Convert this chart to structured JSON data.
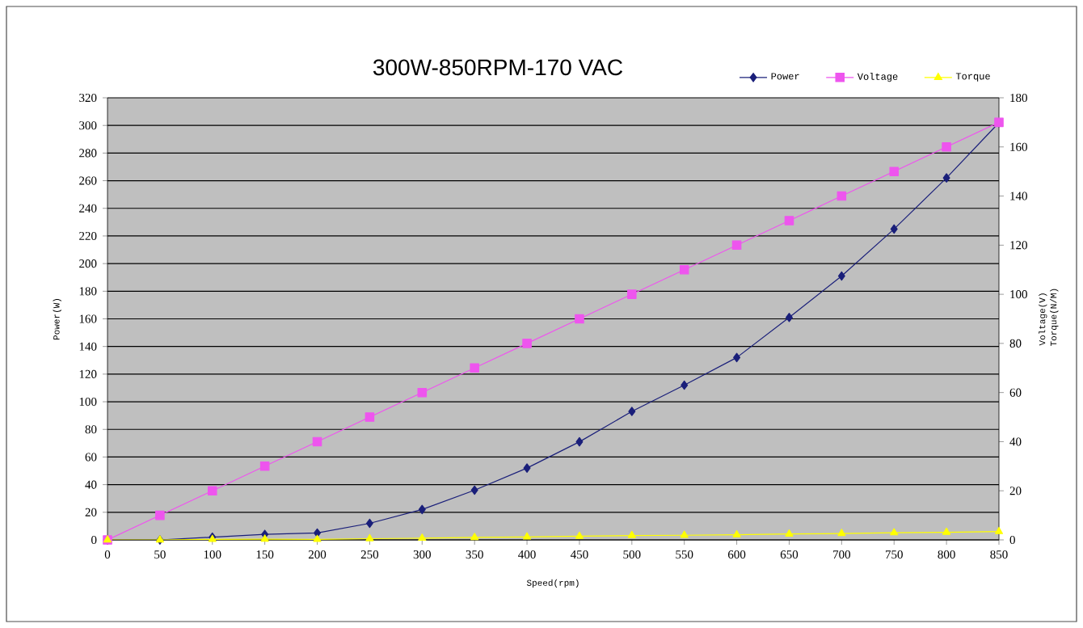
{
  "chart_data": {
    "type": "line",
    "title": "300W-850RPM-170 VAC",
    "xlabel": "Speed(rpm)",
    "ylabel": "Power(W)",
    "y2label": "Voltage(V) Torque(N/M)",
    "x": [
      0,
      50,
      100,
      150,
      200,
      250,
      300,
      350,
      400,
      450,
      500,
      550,
      600,
      650,
      700,
      750,
      800,
      850
    ],
    "series": [
      {
        "name": "Power",
        "color": "#1a1f7a",
        "marker": "diamond",
        "values": [
          0,
          0,
          2,
          4,
          5,
          12,
          22,
          36,
          52,
          71,
          93,
          112,
          132,
          161,
          191,
          225,
          262,
          302
        ]
      },
      {
        "name": "Voltage",
        "color": "#ee55ee",
        "marker": "square",
        "axis": "y2",
        "values": [
          0,
          10,
          20,
          30,
          40,
          50,
          60,
          70,
          80,
          90,
          100,
          110,
          120,
          130,
          140,
          150,
          160,
          170
        ]
      },
      {
        "name": "Torque",
        "color": "#ffff00",
        "marker": "triangle",
        "axis": "y2",
        "values": [
          0,
          0,
          0.2,
          0.3,
          0.2,
          0.5,
          0.7,
          1,
          1.2,
          1.5,
          1.8,
          1.9,
          2.1,
          2.4,
          2.6,
          2.9,
          3.1,
          3.4
        ]
      }
    ],
    "xlim": [
      0,
      850
    ],
    "xticks": [
      0,
      50,
      100,
      150,
      200,
      250,
      300,
      350,
      400,
      450,
      500,
      550,
      600,
      650,
      700,
      750,
      800,
      850
    ],
    "ylim": [
      0,
      320
    ],
    "yticks": [
      0,
      20,
      40,
      60,
      80,
      100,
      120,
      140,
      160,
      180,
      200,
      220,
      240,
      260,
      280,
      300,
      320
    ],
    "y2lim": [
      0,
      180
    ],
    "y2ticks": [
      0,
      20,
      40,
      60,
      80,
      100,
      120,
      140,
      160,
      180
    ],
    "grid": "y",
    "legend": "top right"
  }
}
